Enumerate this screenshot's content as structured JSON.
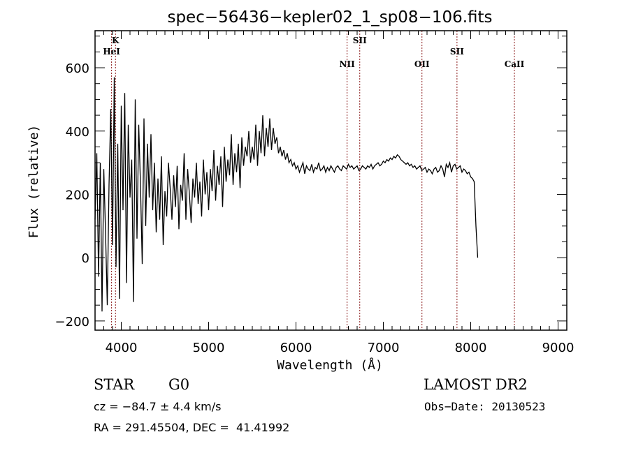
{
  "chart_data": {
    "type": "line",
    "title": "spec−56436−kepler02_1_sp08−106.fits",
    "xlabel": "Wavelength (Å)",
    "ylabel": "Flux (relative)",
    "xlim": [
      3700,
      9100
    ],
    "ylim": [
      -229,
      717
    ],
    "x_ticks": [
      4000,
      5000,
      6000,
      7000,
      8000,
      9000
    ],
    "x_tick_labels": [
      "4000",
      "5000",
      "6000",
      "7000",
      "8000",
      "9000"
    ],
    "x_minor_step": 100,
    "y_ticks": [
      -200,
      0,
      200,
      400,
      600
    ],
    "y_tick_labels": [
      "−200",
      "0",
      "200",
      "400",
      "600"
    ],
    "y_minor_step": 50,
    "grid": false,
    "series": [
      {
        "name": "flux",
        "color": "#000000",
        "x_start": 3700,
        "x_step": 20,
        "values": [
          120,
          330,
          -60,
          300,
          -170,
          280,
          80,
          -150,
          230,
          470,
          40,
          570,
          -30,
          360,
          -130,
          480,
          150,
          520,
          -80,
          420,
          190,
          310,
          -140,
          500,
          60,
          420,
          230,
          -20,
          440,
          100,
          360,
          190,
          390,
          150,
          300,
          80,
          250,
          120,
          320,
          40,
          210,
          130,
          300,
          220,
          120,
          260,
          160,
          290,
          90,
          230,
          180,
          330,
          120,
          280,
          200,
          110,
          250,
          190,
          300,
          170,
          240,
          130,
          310,
          200,
          270,
          150,
          280,
          210,
          340,
          180,
          290,
          230,
          320,
          160,
          350,
          240,
          310,
          260,
          390,
          230,
          330,
          270,
          360,
          220,
          380,
          290,
          350,
          320,
          400,
          300,
          350,
          310,
          420,
          290,
          400,
          330,
          450,
          320,
          410,
          350,
          440,
          340,
          410,
          360,
          380,
          330,
          350,
          320,
          340,
          310,
          330,
          300,
          310,
          290,
          300,
          280,
          290,
          270,
          285,
          300,
          265,
          290,
          280,
          275,
          295,
          270,
          285,
          280,
          300,
          275,
          280,
          290,
          270,
          285,
          275,
          290,
          280,
          270,
          285,
          290,
          280,
          275,
          290,
          285,
          280,
          295,
          285,
          290,
          280,
          285,
          290,
          275,
          280,
          290,
          285,
          280,
          290,
          285,
          295,
          280,
          290,
          295,
          300,
          290,
          295,
          305,
          300,
          310,
          305,
          315,
          310,
          320,
          315,
          325,
          320,
          310,
          305,
          300,
          295,
          300,
          290,
          295,
          285,
          290,
          280,
          285,
          290,
          275,
          280,
          285,
          270,
          280,
          275,
          265,
          280,
          285,
          270,
          275,
          290,
          280,
          255,
          295,
          285,
          300,
          270,
          290,
          295,
          280,
          285,
          290,
          270,
          280,
          275,
          265,
          270,
          255,
          250,
          240,
          100,
          0
        ]
      }
    ],
    "line_markers": [
      {
        "label": "K",
        "wavelength": 3934,
        "row": 1
      },
      {
        "label": "HeI",
        "wavelength": 3889,
        "row": 2
      },
      {
        "label": "NII",
        "wavelength": 6585,
        "row": 3
      },
      {
        "label": "SII",
        "wavelength": 6730,
        "row": 1
      },
      {
        "label": "OII",
        "wavelength": 7442,
        "row": 3
      },
      {
        "label": "SII",
        "wavelength": 7843,
        "row": 2
      },
      {
        "label": "CaII",
        "wavelength": 8500,
        "row": 3
      }
    ],
    "marker_color": "#8b1a1a"
  },
  "info": {
    "object_type": "STAR",
    "subclass": "G0",
    "survey": "LAMOST DR2",
    "velocity": "cz = −84.7 ± 4.4 km/s",
    "obs_date": "Obs−Date: 20130523",
    "coords": "RA = 291.45504, DEC =  41.41992"
  }
}
